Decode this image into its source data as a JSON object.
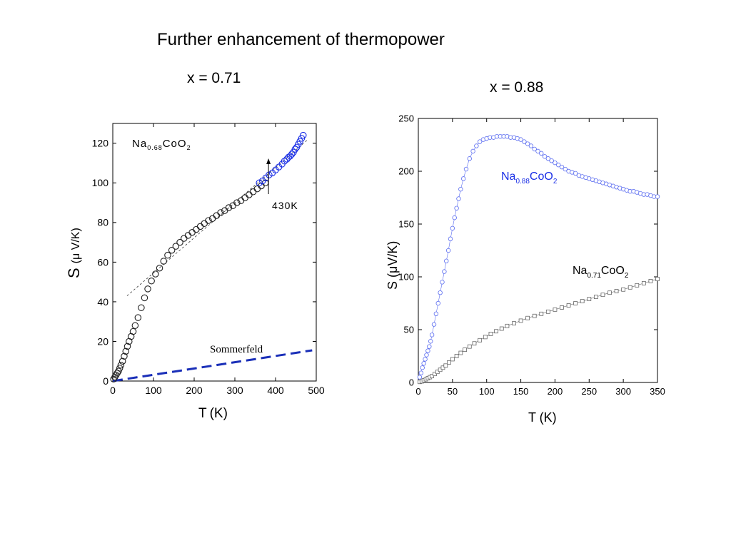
{
  "slide": {
    "title": "Further enhancement of thermopower",
    "label_left": "x = 0.71",
    "label_right": "x = 0.88"
  },
  "chart_data": [
    {
      "type": "scatter",
      "title": "",
      "xlabel": "T",
      "xlabel_unit": "(K)",
      "ylabel": "S",
      "ylabel_unit": "(μ V/K)",
      "xlim": [
        0,
        500
      ],
      "ylim": [
        0,
        130
      ],
      "xticks": [
        0,
        100,
        200,
        300,
        400,
        500
      ],
      "yticks": [
        0,
        20,
        40,
        60,
        80,
        100,
        120
      ],
      "grid": false,
      "legend": "none",
      "annotations": {
        "compound": {
          "base": "Na",
          "sub1": "0.68",
          "mid": "CoO",
          "sub2": "2"
        },
        "arrow_label": "430K",
        "arrow_x": 430,
        "line_label": "Sommerfeld"
      },
      "series": [
        {
          "color": "#222222",
          "marker": "open-circle",
          "x": [
            2,
            5,
            8,
            11,
            14,
            17,
            20,
            24,
            28,
            32,
            36,
            40,
            45,
            50,
            55,
            62,
            70,
            78,
            86,
            95,
            105,
            115,
            125,
            135,
            145,
            155,
            165,
            175,
            185,
            195,
            205,
            215,
            225,
            235,
            245,
            255,
            265,
            275,
            285,
            295,
            305,
            315,
            325,
            335,
            345,
            355,
            365,
            375
          ],
          "y": [
            1,
            2,
            3,
            4,
            5,
            6.5,
            8,
            10,
            12.5,
            15,
            17.5,
            20,
            22.5,
            25,
            28,
            32,
            37,
            42,
            46.5,
            50.5,
            54,
            57,
            60.5,
            63.5,
            66,
            68,
            70,
            72,
            73.5,
            75,
            76.5,
            78,
            79.5,
            81,
            82,
            83.5,
            85,
            86,
            87.5,
            88.5,
            90,
            91,
            92.5,
            94,
            95.5,
            97,
            98.5,
            100
          ]
        },
        {
          "color": "#1a2fe6",
          "marker": "open-circle",
          "x": [
            360,
            368,
            376,
            384,
            392,
            400,
            408,
            416,
            422,
            428,
            432,
            436,
            440,
            444,
            448,
            452,
            456,
            460,
            464,
            468
          ],
          "y": [
            100,
            101,
            102.5,
            104,
            105,
            106.5,
            108,
            109.5,
            111,
            112,
            113,
            113.5,
            114.5,
            115.5,
            117,
            118,
            119.5,
            121,
            122.5,
            124
          ]
        },
        {
          "name": "Sommerfeld",
          "type": "line",
          "style": "dashed",
          "color": "#1a2fb8",
          "x": [
            0,
            490
          ],
          "y": [
            0,
            15.5
          ]
        },
        {
          "type": "line",
          "style": "dotted",
          "color": "#333333",
          "x": [
            35,
            480
          ],
          "y": [
            43,
            122
          ]
        }
      ]
    },
    {
      "type": "line",
      "title": "",
      "xlabel": "T (K)",
      "ylabel": "S (μV/K)",
      "xlim": [
        0,
        350
      ],
      "ylim": [
        0,
        250
      ],
      "xticks": [
        0,
        50,
        100,
        150,
        200,
        250,
        300,
        350
      ],
      "yticks": [
        0,
        50,
        100,
        150,
        200,
        250
      ],
      "grid": false,
      "legend": "none",
      "annotations": {
        "label_a": {
          "base": "Na",
          "sub1": "0.88",
          "mid": "CoO",
          "sub2": "2",
          "color": "#1a2fe6"
        },
        "label_b": {
          "base": "Na",
          "sub1": "0.71",
          "mid": "CoO",
          "sub2": "2",
          "color": "#000000"
        }
      },
      "series": [
        {
          "color": "#5a6cf0",
          "marker": "open-circle",
          "x": [
            2,
            4,
            6,
            8,
            10,
            12,
            14,
            16,
            18,
            20,
            23,
            26,
            29,
            32,
            35,
            38,
            41,
            44,
            47,
            50,
            53,
            56,
            59,
            62,
            66,
            70,
            75,
            80,
            85,
            90,
            95,
            100,
            105,
            110,
            115,
            120,
            125,
            130,
            135,
            140,
            145,
            150,
            155,
            160,
            165,
            170,
            175,
            180,
            185,
            190,
            195,
            200,
            205,
            210,
            215,
            220,
            225,
            230,
            235,
            240,
            245,
            250,
            255,
            260,
            265,
            270,
            275,
            280,
            285,
            290,
            295,
            300,
            305,
            310,
            315,
            320,
            325,
            330,
            335,
            340,
            345,
            350
          ],
          "y": [
            5,
            9,
            14,
            18,
            22,
            26,
            30,
            34,
            39,
            45,
            55,
            65,
            75,
            85,
            95,
            105,
            115,
            125,
            136,
            146,
            156,
            165,
            174,
            183,
            193,
            202,
            212,
            219,
            224,
            228,
            230,
            231,
            232,
            232,
            233,
            233,
            233,
            233,
            232,
            232,
            231,
            230,
            228,
            226,
            224,
            221,
            219,
            217,
            214,
            212,
            210,
            208,
            206,
            204,
            202,
            200,
            199,
            198,
            196,
            195,
            194,
            193,
            192,
            191,
            190,
            189,
            188,
            187,
            186,
            185,
            184,
            183,
            182,
            181,
            181,
            180,
            179,
            178,
            178,
            177,
            176,
            176
          ]
        },
        {
          "color": "#666666",
          "marker": "open-square",
          "x": [
            2,
            5,
            8,
            11,
            14,
            17,
            20,
            24,
            28,
            32,
            36,
            40,
            45,
            50,
            56,
            62,
            68,
            75,
            82,
            90,
            98,
            106,
            114,
            122,
            130,
            140,
            150,
            160,
            170,
            180,
            190,
            200,
            210,
            220,
            230,
            240,
            250,
            260,
            270,
            280,
            290,
            300,
            310,
            320,
            330,
            340,
            350
          ],
          "y": [
            0.5,
            1,
            2,
            3,
            4,
            5,
            6,
            8,
            10,
            12,
            14,
            16,
            19,
            22,
            25,
            28,
            31,
            34,
            37,
            40,
            43,
            46,
            48.5,
            51,
            53.5,
            56,
            58.5,
            61,
            63,
            65,
            67,
            69,
            71,
            73,
            75,
            77,
            79,
            81,
            83,
            85,
            86.5,
            88,
            90,
            92,
            94,
            96,
            98
          ]
        }
      ]
    }
  ]
}
